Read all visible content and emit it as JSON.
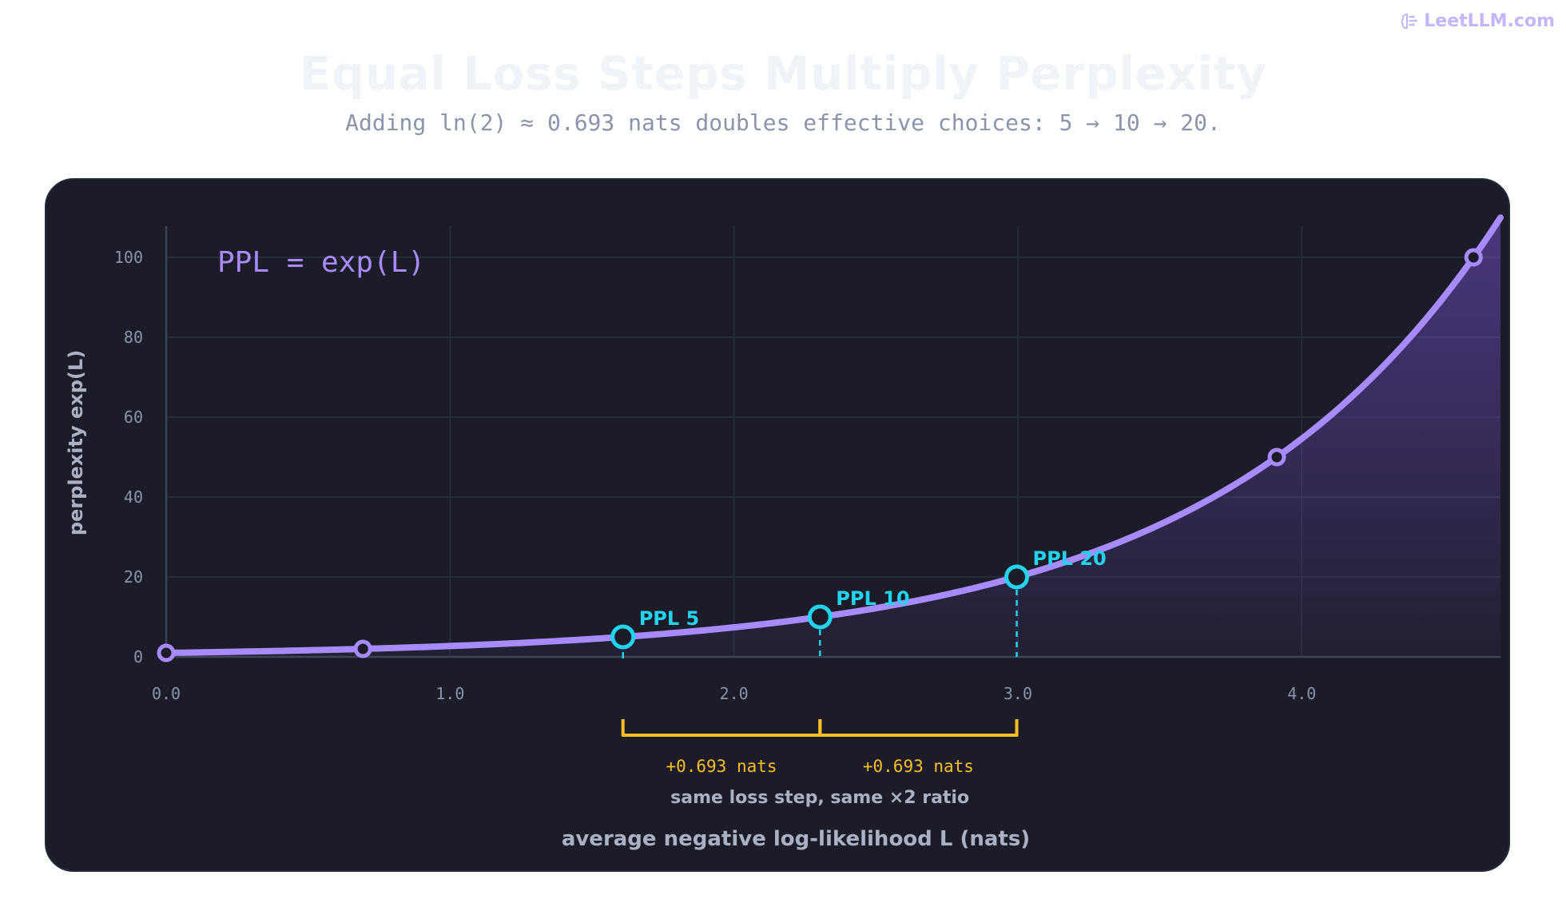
{
  "brand": {
    "name": "LeetLLM.com",
    "icon": "brain-icon"
  },
  "header": {
    "title": "Equal Loss Steps Multiply Perplexity",
    "subtitle": "Adding ln(2) ≈ 0.693 nats doubles effective choices: 5 → 10 → 20."
  },
  "chart_data": {
    "type": "line",
    "title": "Equal Loss Steps Multiply Perplexity",
    "subtitle": "Adding ln(2) ≈ 0.693 nats doubles effective choices: 5 → 10 → 20.",
    "xlabel": "average negative log-likelihood L (nats)",
    "ylabel": "perplexity exp(L)",
    "xlim": [
      0,
      4.7
    ],
    "ylim": [
      0,
      110
    ],
    "x_ticks": [
      "0.0",
      "1.0",
      "2.0",
      "3.0",
      "4.0"
    ],
    "y_ticks": [
      "0",
      "20",
      "40",
      "60",
      "80",
      "100"
    ],
    "grid": true,
    "formula": "PPL = exp(L)",
    "curve": {
      "function": "exp",
      "x_range": [
        0,
        4.7
      ],
      "color": "#a78bfa"
    },
    "markers": [
      {
        "x": 0.0,
        "y": 1
      },
      {
        "x": 0.693,
        "y": 2
      },
      {
        "x": 3.912,
        "y": 50
      },
      {
        "x": 4.605,
        "y": 100
      }
    ],
    "highlighted_points": [
      {
        "x": 1.609,
        "y": 5,
        "label": "PPL 5"
      },
      {
        "x": 2.303,
        "y": 10,
        "label": "PPL 10"
      },
      {
        "x": 2.996,
        "y": 20,
        "label": "PPL 20"
      }
    ],
    "steps": [
      {
        "from": 1.609,
        "to": 2.303,
        "label": "+0.693 nats"
      },
      {
        "from": 2.303,
        "to": 2.996,
        "label": "+0.693 nats"
      }
    ],
    "step_caption": "same loss step, same ×2 ratio",
    "colors": {
      "curve": "#a78bfa",
      "highlight": "#22d3ee",
      "bracket": "#fbbf24",
      "panel": "#1c1c28"
    }
  }
}
